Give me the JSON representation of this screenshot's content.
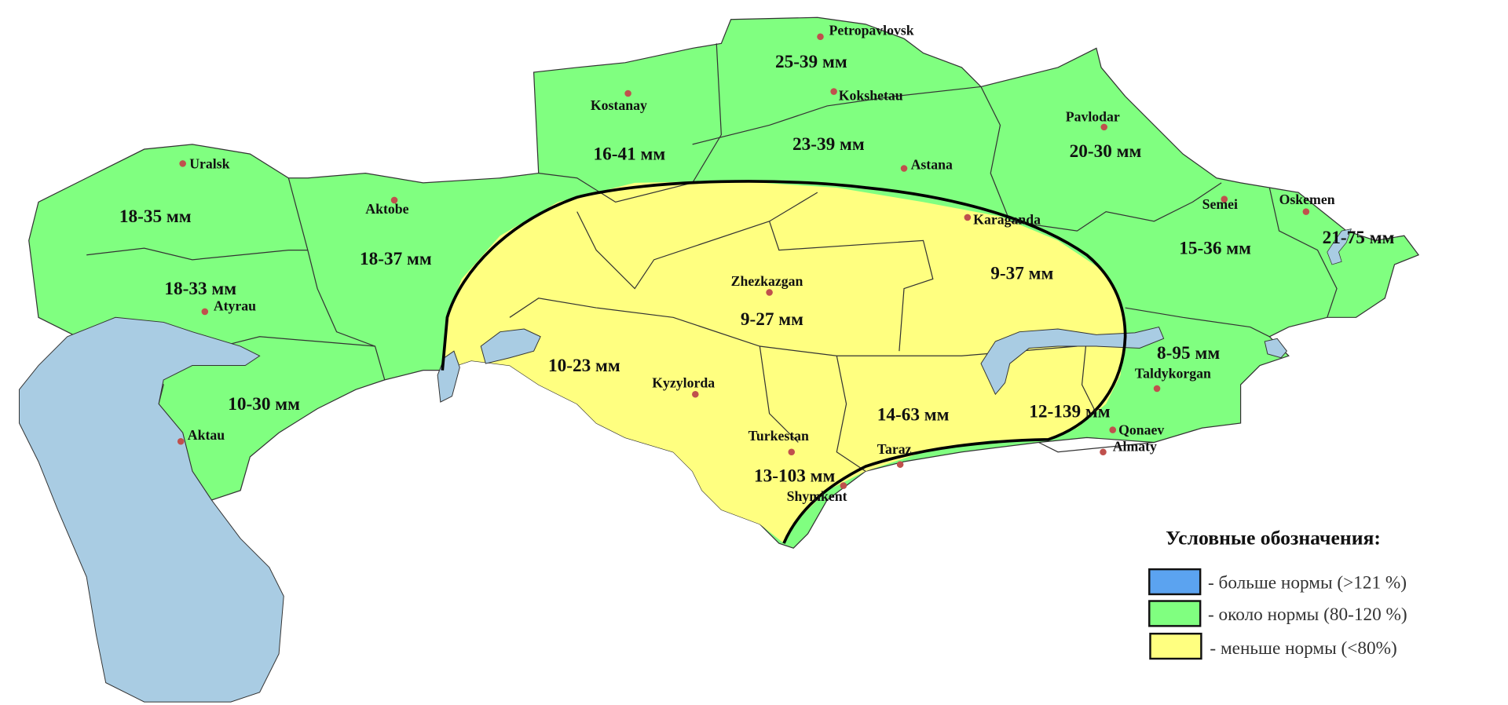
{
  "colors": {
    "above_norm": "#5BA3F0",
    "near_norm": "#80FF80",
    "below_norm": "#FFFF80",
    "water": "#A9CCE3",
    "city_dot": "#C0504D"
  },
  "cities": [
    {
      "name": "Petropavlovsk"
    },
    {
      "name": "Kokshetau"
    },
    {
      "name": "Astana"
    },
    {
      "name": "Kostanay"
    },
    {
      "name": "Pavlodar"
    },
    {
      "name": "Uralsk"
    },
    {
      "name": "Aktobe"
    },
    {
      "name": "Atyrau"
    },
    {
      "name": "Aktau"
    },
    {
      "name": "Karaganda"
    },
    {
      "name": "Semei"
    },
    {
      "name": "Oskemen"
    },
    {
      "name": "Zhezkazgan"
    },
    {
      "name": "Kyzylorda"
    },
    {
      "name": "Turkestan"
    },
    {
      "name": "Shymkent"
    },
    {
      "name": "Taraz"
    },
    {
      "name": "Taldykorgan"
    },
    {
      "name": "Qonaev"
    },
    {
      "name": "Almaty"
    }
  ],
  "regions": [
    {
      "value": "25-39 мм",
      "category": "near_norm"
    },
    {
      "value": "23-39 мм",
      "category": "near_norm"
    },
    {
      "value": "16-41 мм",
      "category": "near_norm"
    },
    {
      "value": "20-30 мм",
      "category": "near_norm"
    },
    {
      "value": "18-35 мм",
      "category": "near_norm"
    },
    {
      "value": "18-37 мм",
      "category": "near_norm"
    },
    {
      "value": "18-33 мм",
      "category": "near_norm"
    },
    {
      "value": "10-30 мм",
      "category": "near_norm"
    },
    {
      "value": "9-37 мм",
      "category": "below_norm"
    },
    {
      "value": "9-27 мм",
      "category": "below_norm"
    },
    {
      "value": "10-23 мм",
      "category": "below_norm"
    },
    {
      "value": "15-36 мм",
      "category": "near_norm"
    },
    {
      "value": "21-75 мм",
      "category": "near_norm"
    },
    {
      "value": "8-95 мм",
      "category": "near_norm"
    },
    {
      "value": "14-63 мм",
      "category": "below_norm"
    },
    {
      "value": "12-139 мм",
      "category": "below_norm"
    },
    {
      "value": "13-103 мм",
      "category": "below_norm"
    }
  ],
  "legend": {
    "title": "Условные обозначения:",
    "items": [
      {
        "label": "- больше нормы (>121 %)",
        "color": "#5BA3F0"
      },
      {
        "label": "- около нормы (80-120 %)",
        "color": "#80FF80"
      },
      {
        "label": "- меньше нормы (<80%)",
        "color": "#FFFF80"
      }
    ]
  }
}
